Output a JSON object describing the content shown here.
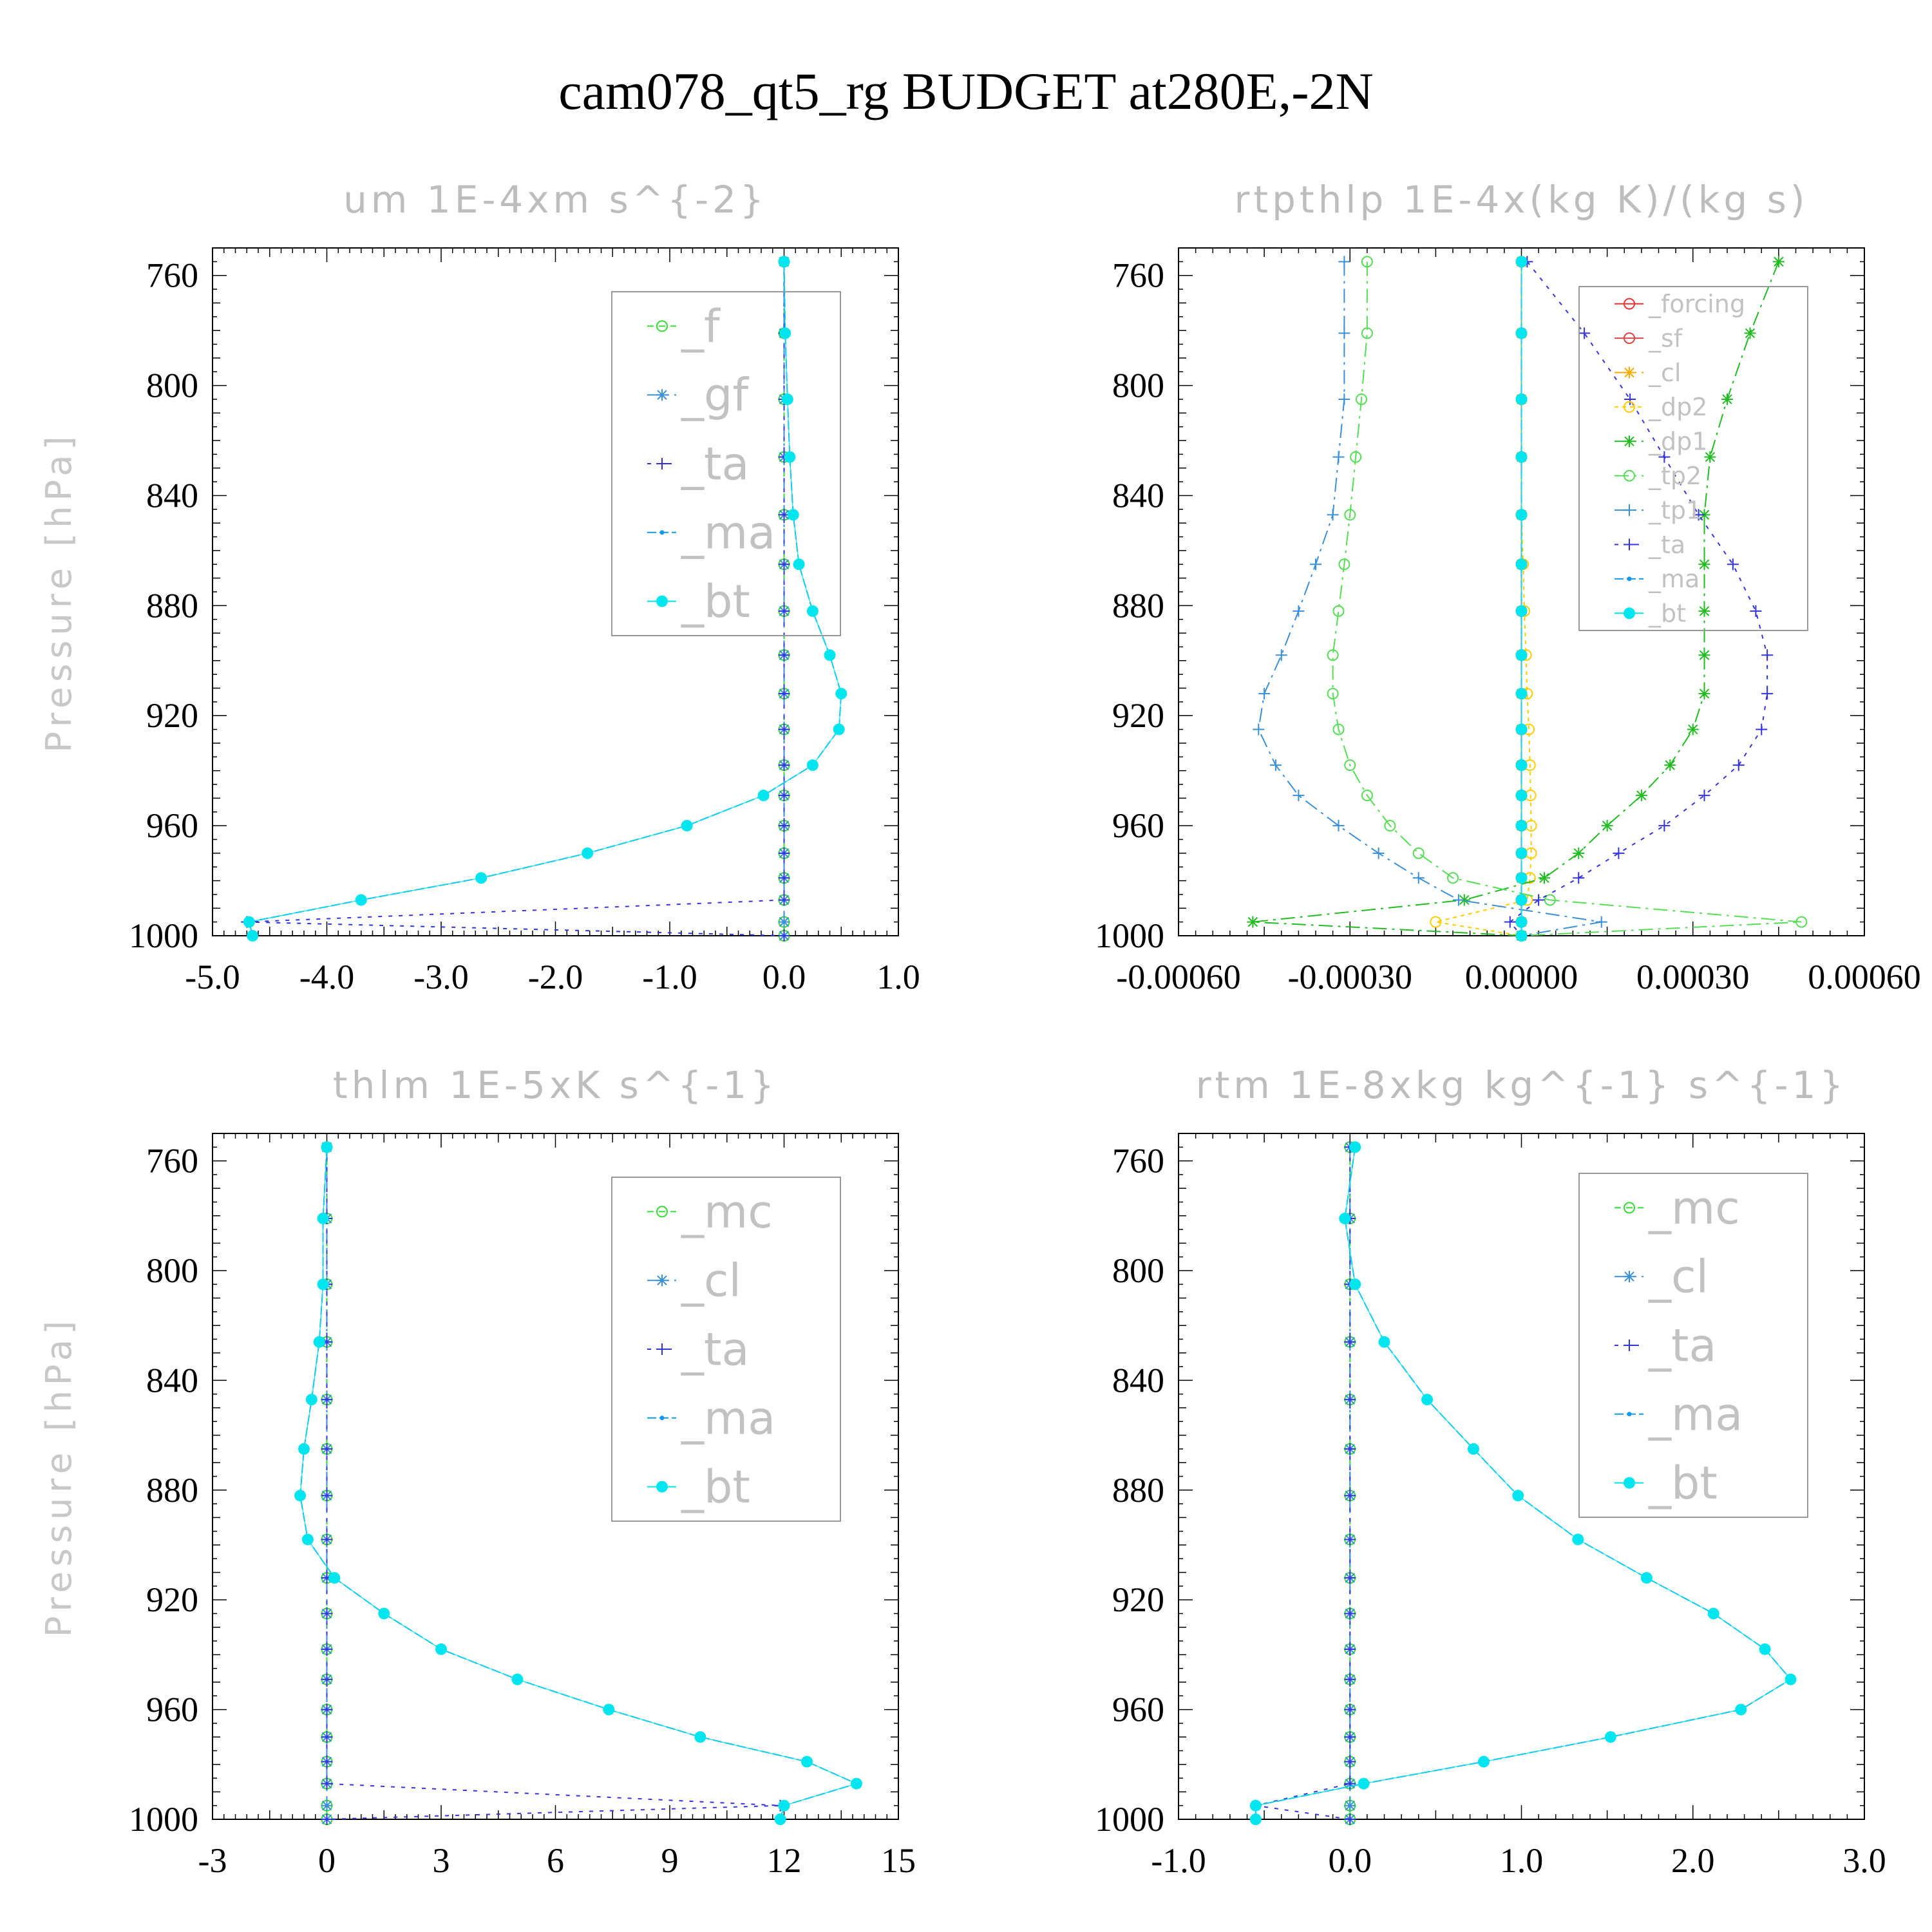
{
  "title": "cam078_qt5_rg  BUDGET at280E,-2N",
  "colors": {
    "_f": "#33dd33",
    "_gf": "#3b8fd6",
    "_ta": "#3333dd",
    "_ma": "#1199ee",
    "_bt": "#00e5ee",
    "_mc": "#33dd33",
    "_cl": "#3b8fd6",
    "_forcing": "#ee3333",
    "_sf": "#dd4444",
    "_cl_r": "#ffaa00",
    "_dp2": "#ffcc00",
    "_dp1": "#22bb22",
    "_tp2": "#55dd55",
    "_tp1": "#3b8fd6"
  },
  "chart_data": [
    {
      "type": "line",
      "title": "um   1E-4xm s^{-2}",
      "ylabel": "Pressure [hPa]",
      "xlim": [
        -5.0,
        1.0
      ],
      "ylim": [
        1000,
        750
      ],
      "xticks": [
        "-5.0",
        "-4.0",
        "-3.0",
        "-2.0",
        "-1.0",
        "0.0",
        "1.0"
      ],
      "xtick_values": [
        -5,
        -4,
        -3,
        -2,
        -1,
        0,
        1
      ],
      "yticks": [
        "760",
        "800",
        "840",
        "880",
        "920",
        "960",
        "1000"
      ],
      "legend": [
        "_f",
        "_gf",
        "_ta",
        "_ma",
        "_bt"
      ],
      "legend_pos": "top-right",
      "pressure": [
        755,
        781,
        805,
        826,
        847,
        865,
        882,
        898,
        912,
        925,
        938,
        949,
        960,
        970,
        979,
        987,
        995,
        1000
      ],
      "series": [
        {
          "name": "_f",
          "values": [
            0,
            0,
            0,
            0,
            0,
            0,
            0,
            0,
            0,
            0,
            0,
            0,
            0,
            0,
            0,
            0,
            0,
            0
          ]
        },
        {
          "name": "_gf",
          "values": [
            0,
            0,
            0,
            0,
            0,
            0,
            0,
            0,
            0,
            0,
            0,
            0,
            0,
            0,
            0,
            0,
            0,
            0
          ]
        },
        {
          "name": "_ta",
          "values": [
            0,
            0,
            0,
            0,
            0,
            0,
            0,
            0,
            0,
            0,
            0,
            0,
            0,
            0,
            0,
            0,
            -4.7,
            0
          ]
        },
        {
          "name": "_ma",
          "values": [
            0.0,
            0.01,
            0.03,
            0.05,
            0.08,
            0.13,
            0.25,
            0.4,
            0.5,
            0.48,
            0.25,
            -0.18,
            -0.85,
            -1.72,
            -2.65,
            -3.7,
            -4.68,
            -4.65
          ]
        },
        {
          "name": "_bt",
          "values": [
            0.0,
            0.01,
            0.03,
            0.05,
            0.08,
            0.13,
            0.25,
            0.4,
            0.5,
            0.48,
            0.25,
            -0.18,
            -0.85,
            -1.72,
            -2.65,
            -3.7,
            -4.68,
            -4.65
          ]
        }
      ]
    },
    {
      "type": "line",
      "title": "rtpthlp   1E-4x(kg K)/(kg s)",
      "ylabel": "Pressure [hPa]",
      "xlim": [
        -0.0006,
        0.0006
      ],
      "ylim": [
        1000,
        750
      ],
      "xticks": [
        "-0.00060",
        "-0.00030",
        "0.00000",
        "0.00030",
        "0.00060"
      ],
      "xtick_values": [
        -0.0006,
        -0.0003,
        0,
        0.0003,
        0.0006
      ],
      "yticks": [
        "760",
        "800",
        "840",
        "880",
        "920",
        "960",
        "1000"
      ],
      "legend": [
        "_forcing",
        "_sf",
        "_cl",
        "_dp2",
        "_dp1",
        "_tp2",
        "_tp1",
        "_ta",
        "_ma",
        "_bt"
      ],
      "legend_pos": "top-right",
      "pressure": [
        755,
        781,
        805,
        826,
        847,
        865,
        882,
        898,
        912,
        925,
        938,
        949,
        960,
        970,
        979,
        987,
        995,
        1000
      ],
      "series": [
        {
          "name": "_forcing",
          "values": [
            0,
            0,
            0,
            0,
            0,
            0,
            0,
            0,
            0,
            0,
            0,
            0,
            0,
            0,
            0,
            0,
            0,
            0
          ]
        },
        {
          "name": "_sf",
          "values": [
            0,
            0,
            0,
            0,
            0,
            0,
            0,
            0,
            0,
            0,
            0,
            0,
            0,
            0,
            0,
            0,
            0,
            0
          ]
        },
        {
          "name": "_cl",
          "values": [
            0,
            0,
            0,
            0,
            0,
            0,
            0,
            0,
            0,
            0,
            0,
            0,
            0,
            0,
            0,
            0,
            0,
            0
          ]
        },
        {
          "name": "_dp2",
          "values": [
            0,
            0,
            0,
            0,
            0,
            3e-06,
            5e-06,
            8e-06,
            1e-05,
            1.3e-05,
            1.5e-05,
            1.6e-05,
            1.7e-05,
            1.7e-05,
            1.5e-05,
            1e-05,
            -0.00015,
            0
          ]
        },
        {
          "name": "_dp1",
          "values": [
            0.00045,
            0.0004,
            0.00036,
            0.00033,
            0.00032,
            0.00032,
            0.00032,
            0.00032,
            0.00032,
            0.0003,
            0.00026,
            0.00021,
            0.00015,
            0.0001,
            4e-05,
            -0.0001,
            -0.00047,
            0
          ]
        },
        {
          "name": "_tp2",
          "values": [
            -0.00027,
            -0.00027,
            -0.00028,
            -0.00029,
            -0.0003,
            -0.00031,
            -0.00032,
            -0.00033,
            -0.00033,
            -0.00032,
            -0.0003,
            -0.00027,
            -0.00023,
            -0.00018,
            -0.00012,
            5e-05,
            0.00049,
            0
          ]
        },
        {
          "name": "_tp1",
          "values": [
            -0.00031,
            -0.00031,
            -0.00031,
            -0.00032,
            -0.00033,
            -0.00036,
            -0.00039,
            -0.00042,
            -0.00045,
            -0.00046,
            -0.00043,
            -0.00039,
            -0.00032,
            -0.00025,
            -0.00018,
            -0.00011,
            0.00014,
            0
          ]
        },
        {
          "name": "_ta",
          "values": [
            1e-05,
            0.00011,
            0.00019,
            0.00025,
            0.00031,
            0.00037,
            0.00041,
            0.00043,
            0.00043,
            0.00042,
            0.00038,
            0.00032,
            0.00025,
            0.00017,
            0.0001,
            3e-05,
            -2e-05,
            0
          ]
        },
        {
          "name": "_ma",
          "values": [
            0,
            0,
            0,
            0,
            0,
            0,
            0,
            0,
            0,
            0,
            0,
            0,
            0,
            0,
            0,
            0,
            0,
            0
          ]
        },
        {
          "name": "_bt",
          "values": [
            0,
            0,
            0,
            0,
            0,
            0,
            0,
            0,
            0,
            0,
            0,
            0,
            0,
            0,
            0,
            0,
            0,
            0
          ]
        }
      ]
    },
    {
      "type": "line",
      "title": "thlm   1E-5xK s^{-1}",
      "ylabel": "Pressure [hPa]",
      "xlim": [
        -3,
        15
      ],
      "ylim": [
        1000,
        750
      ],
      "xticks": [
        "-3",
        "0",
        "3",
        "6",
        "9",
        "12",
        "15"
      ],
      "xtick_values": [
        -3,
        0,
        3,
        6,
        9,
        12,
        15
      ],
      "yticks": [
        "760",
        "800",
        "840",
        "880",
        "920",
        "960",
        "1000"
      ],
      "legend": [
        "_mc",
        "_cl",
        "_ta",
        "_ma",
        "_bt"
      ],
      "legend_pos": "top-right",
      "pressure": [
        755,
        781,
        805,
        826,
        847,
        865,
        882,
        898,
        912,
        925,
        938,
        949,
        960,
        970,
        979,
        987,
        995,
        1000
      ],
      "series": [
        {
          "name": "_mc",
          "values": [
            0,
            0,
            0,
            0,
            0,
            0,
            0,
            0,
            0,
            0,
            0,
            0,
            0,
            0,
            0,
            0,
            0,
            0
          ]
        },
        {
          "name": "_cl",
          "values": [
            0,
            0,
            0,
            0,
            0,
            0,
            0,
            0,
            0,
            0,
            0,
            0,
            0,
            0,
            0,
            0,
            0,
            0
          ]
        },
        {
          "name": "_ta",
          "values": [
            0,
            0,
            0,
            0,
            0,
            0,
            0,
            0,
            0,
            0,
            0,
            0,
            0,
            0,
            0,
            0,
            11.9,
            0
          ]
        },
        {
          "name": "_ma",
          "values": [
            0.0,
            -0.1,
            -0.1,
            -0.2,
            -0.4,
            -0.6,
            -0.7,
            -0.5,
            0.2,
            1.5,
            3.0,
            5.0,
            7.4,
            9.8,
            12.6,
            13.9,
            12.0,
            11.9
          ]
        },
        {
          "name": "_bt",
          "values": [
            0.0,
            -0.1,
            -0.1,
            -0.2,
            -0.4,
            -0.6,
            -0.7,
            -0.5,
            0.2,
            1.5,
            3.0,
            5.0,
            7.4,
            9.8,
            12.6,
            13.9,
            12.0,
            11.9
          ]
        }
      ]
    },
    {
      "type": "line",
      "title": "rtm   1E-8xkg kg^{-1} s^{-1}",
      "ylabel": "Pressure [hPa]",
      "xlim": [
        -1.0,
        3.0
      ],
      "ylim": [
        1000,
        750
      ],
      "xticks": [
        "-1.0",
        "0.0",
        "1.0",
        "2.0",
        "3.0"
      ],
      "xtick_values": [
        -1,
        0,
        1,
        2,
        3
      ],
      "yticks": [
        "760",
        "800",
        "840",
        "880",
        "920",
        "960",
        "1000"
      ],
      "legend": [
        "_mc",
        "_cl",
        "_ta",
        "_ma",
        "_bt"
      ],
      "legend_pos": "top-right",
      "pressure": [
        755,
        781,
        805,
        826,
        847,
        865,
        882,
        898,
        912,
        925,
        938,
        949,
        960,
        970,
        979,
        987,
        995,
        1000
      ],
      "series": [
        {
          "name": "_mc",
          "values": [
            0,
            0,
            0,
            0,
            0,
            0,
            0,
            0,
            0,
            0,
            0,
            0,
            0,
            0,
            0,
            0,
            0,
            0
          ]
        },
        {
          "name": "_cl",
          "values": [
            0,
            0,
            0,
            0,
            0,
            0,
            0,
            0,
            0,
            0,
            0,
            0,
            0,
            0,
            0,
            0,
            0,
            0
          ]
        },
        {
          "name": "_ta",
          "values": [
            0,
            0,
            0,
            0,
            0,
            0,
            0,
            0,
            0,
            0,
            0,
            0,
            0,
            0,
            0,
            0,
            -0.55,
            0
          ]
        },
        {
          "name": "_ma",
          "values": [
            0.03,
            -0.03,
            0.03,
            0.2,
            0.45,
            0.72,
            0.98,
            1.33,
            1.73,
            2.12,
            2.42,
            2.57,
            2.28,
            1.52,
            0.78,
            0.08,
            -0.55,
            -0.55
          ]
        },
        {
          "name": "_bt",
          "values": [
            0.03,
            -0.03,
            0.03,
            0.2,
            0.45,
            0.72,
            0.98,
            1.33,
            1.73,
            2.12,
            2.42,
            2.57,
            2.28,
            1.52,
            0.78,
            0.08,
            -0.55,
            -0.55
          ]
        }
      ]
    }
  ]
}
